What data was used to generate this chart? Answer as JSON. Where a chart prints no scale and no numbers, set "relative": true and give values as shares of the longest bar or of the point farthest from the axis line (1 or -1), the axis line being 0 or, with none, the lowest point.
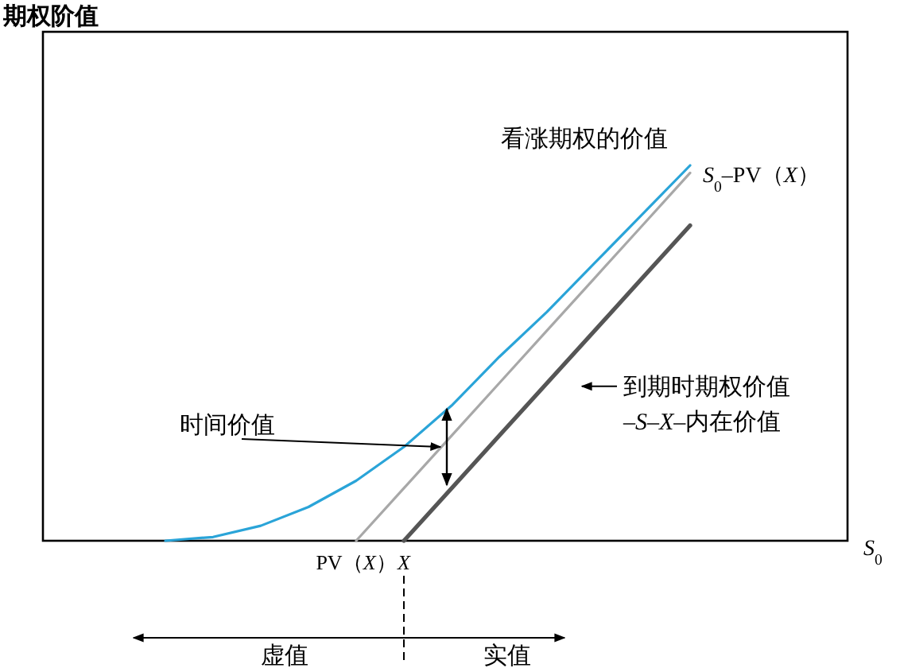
{
  "chart_data": {
    "type": "line",
    "relative": true,
    "legend": false,
    "categories": [
      null,
      null,
      null,
      null,
      "PV（*X*）",
      "*X*",
      null,
      null,
      null,
      null,
      null,
      null
    ],
    "series": [
      {
        "name": "看涨期权的价值",
        "color": "#2aa4d8",
        "values": [
          0,
          0.01,
          0.04,
          0.09,
          0.16,
          0.25,
          0.36,
          0.49,
          0.61,
          0.74,
          0.87,
          1
        ]
      },
      {
        "name": "*S*$_{0}$–PV（*X*）",
        "color": "#a8a8a8",
        "values": [
          null,
          null,
          null,
          null,
          0,
          0.14,
          0.28,
          0.42,
          0.56,
          0.7,
          0.84,
          0.98
        ]
      },
      {
        "name": "到期时期权价值 –*S*–*X*–内在价值",
        "color": "#555555",
        "values": [
          null,
          null,
          null,
          null,
          null,
          0,
          0.14,
          0.28,
          0.42,
          0.56,
          0.7,
          0.84
        ]
      }
    ],
    "annotations": [
      "时间价值",
      "虚值",
      "实值",
      "期权阶值",
      "*S*$_{0}$"
    ]
  }
}
